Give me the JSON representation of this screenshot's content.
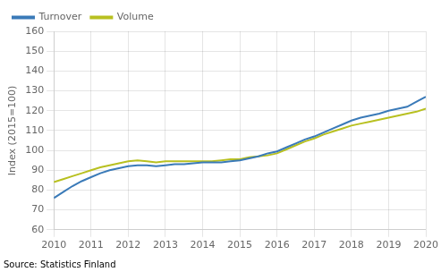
{
  "chart_data": {
    "type": "line",
    "ylabel": "Index (2015=100)",
    "annotations": [
      "Source: Statistics Finland"
    ],
    "x": [
      2010,
      2010.25,
      2010.5,
      2010.75,
      2011,
      2011.25,
      2011.5,
      2011.75,
      2012,
      2012.25,
      2012.5,
      2012.75,
      2013,
      2013.25,
      2013.5,
      2013.75,
      2014,
      2014.25,
      2014.5,
      2014.75,
      2015,
      2015.25,
      2015.5,
      2015.75,
      2016,
      2016.25,
      2016.5,
      2016.75,
      2017,
      2017.25,
      2017.5,
      2017.75,
      2018,
      2018.25,
      2018.5,
      2018.75,
      2019,
      2019.25,
      2019.5,
      2019.75,
      2020
    ],
    "series": [
      {
        "name": "Turnover",
        "color": "#3a7ab8",
        "values": [
          76.0,
          79.0,
          82.0,
          84.5,
          86.5,
          88.5,
          90.0,
          91.0,
          92.0,
          92.5,
          92.5,
          92.0,
          92.5,
          93.0,
          93.0,
          93.5,
          94.0,
          94.0,
          94.0,
          94.5,
          95.0,
          96.0,
          97.0,
          98.5,
          99.5,
          101.5,
          103.5,
          105.5,
          107.0,
          109.0,
          111.0,
          113.0,
          115.0,
          116.5,
          117.5,
          118.5,
          120.0,
          121.0,
          122.0,
          124.5,
          127.0
        ]
      },
      {
        "name": "Volume",
        "color": "#b8c020",
        "values": [
          84.0,
          85.5,
          87.0,
          88.5,
          90.0,
          91.5,
          92.5,
          93.5,
          94.5,
          95.0,
          94.5,
          94.0,
          94.5,
          94.5,
          94.5,
          94.5,
          94.5,
          94.5,
          95.0,
          95.5,
          95.5,
          96.5,
          97.0,
          97.5,
          98.5,
          100.5,
          102.5,
          104.5,
          106.0,
          108.0,
          109.5,
          111.0,
          112.5,
          113.5,
          114.5,
          115.5,
          116.5,
          117.5,
          118.5,
          119.5,
          121.0
        ]
      }
    ],
    "xlim": [
      2010,
      2020
    ],
    "xticks": [
      2010,
      2011,
      2012,
      2013,
      2014,
      2015,
      2016,
      2017,
      2018,
      2019,
      2020
    ],
    "ylim": [
      60,
      160
    ],
    "yticks": [
      60,
      70,
      80,
      90,
      100,
      110,
      120,
      130,
      140,
      150,
      160
    ],
    "grid": true,
    "legend": "upper left"
  }
}
